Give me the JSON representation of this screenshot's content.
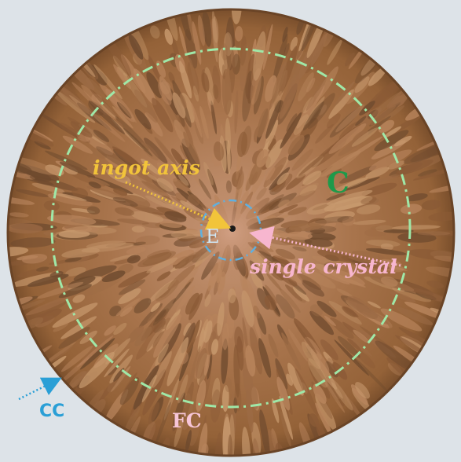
{
  "labels": {
    "ingot_axis": "ingot axis",
    "zone_c": "C",
    "zone_e": "E",
    "single_crystal": "single crystal",
    "zone_cc": "CC",
    "zone_fc": "FC"
  },
  "colors": {
    "background": "#dde3e8",
    "ingot_dark": "#6e4a2e",
    "ingot_mid": "#9c6b45",
    "ingot_light": "#c89a6e",
    "boundary_dashed": "#9fe8a8",
    "center_dashed": "#5fb0e0",
    "ingot_axis_label": "#f2c43a",
    "zone_c_label": "#1e9a4a",
    "single_crystal_label": "#f7b6cf",
    "zone_cc_label": "#2a9fd6",
    "zone_fc_label": "#f7c6d8"
  }
}
